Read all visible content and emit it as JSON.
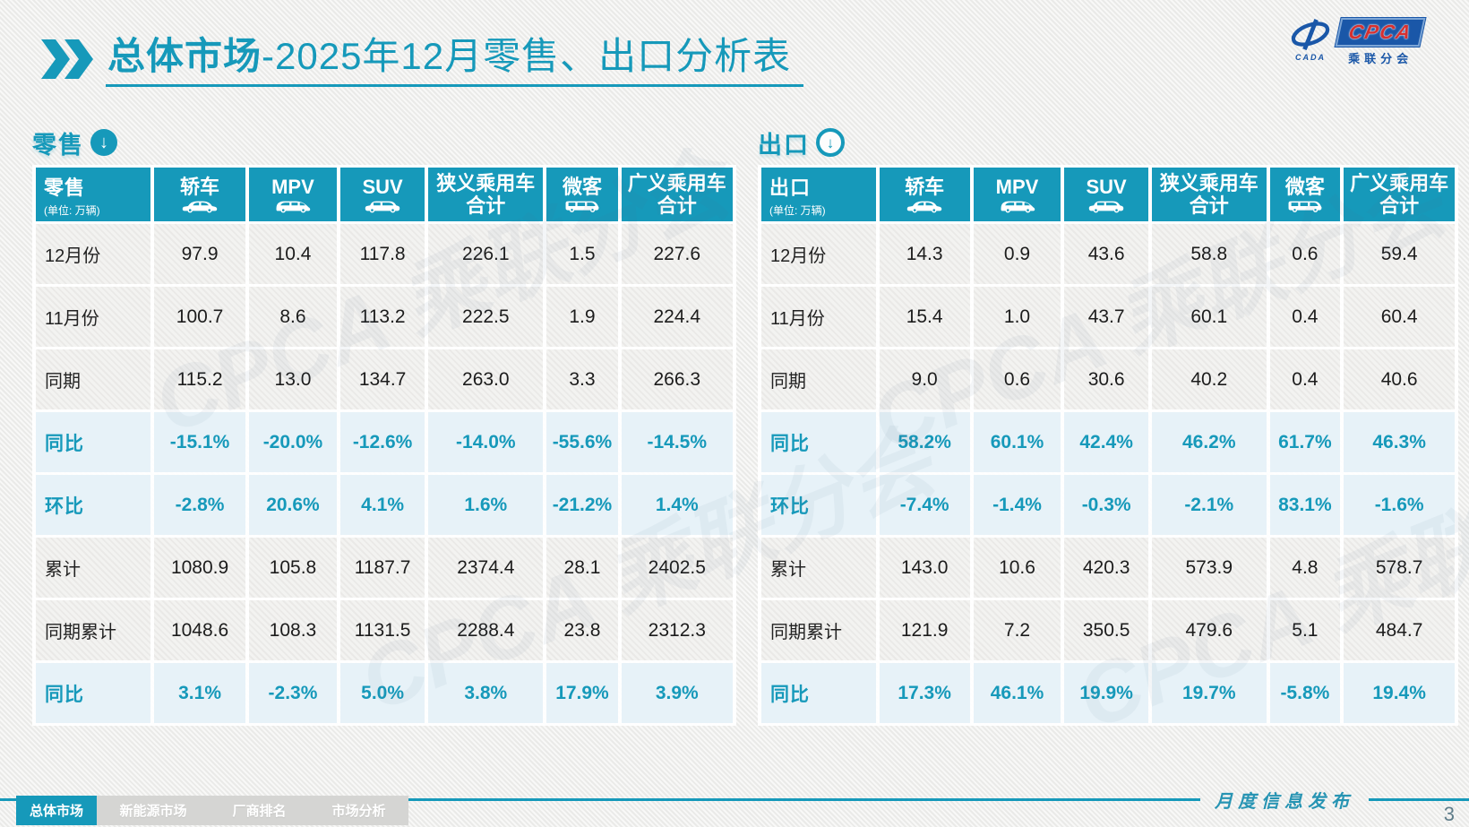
{
  "page": {
    "title_bold": "总体市场",
    "title_rest": "-2025年12月零售、出口分析表",
    "footer_text": "月度信息发布",
    "page_number": "3"
  },
  "logo": {
    "acronym": "CPCA",
    "subtitle": "乘联分会",
    "caption": "CADA"
  },
  "colors": {
    "teal": "#1699BA",
    "percent_row_bg": "#E7F2F8",
    "logo_blue": "#1A57A8",
    "logo_red": "#D63030"
  },
  "watermark": "CPCA 乘联分会",
  "nav": {
    "items": [
      {
        "label": "总体市场",
        "active": true
      },
      {
        "label": "新能源市场",
        "active": false
      },
      {
        "label": "厂商排名",
        "active": false
      },
      {
        "label": "市场分析",
        "active": false
      }
    ]
  },
  "chart_data": [
    {
      "type": "table",
      "title": "零售",
      "unit": "(单位: 万辆)",
      "arrow_icon": "solid-down-arrow-icon",
      "columns": [
        {
          "label": "轿车",
          "icon": "sedan-icon"
        },
        {
          "label": "MPV",
          "icon": "mpv-icon"
        },
        {
          "label": "SUV",
          "icon": "suv-icon"
        },
        {
          "label": "狭义乘用车",
          "sublabel": "合计"
        },
        {
          "label": "微客",
          "icon": "van-icon"
        },
        {
          "label": "广义乘用车",
          "sublabel": "合计"
        }
      ],
      "rows": [
        {
          "label": "12月份",
          "style": "value",
          "cells": [
            "97.9",
            "10.4",
            "117.8",
            "226.1",
            "1.5",
            "227.6"
          ]
        },
        {
          "label": "11月份",
          "style": "value",
          "cells": [
            "100.7",
            "8.6",
            "113.2",
            "222.5",
            "1.9",
            "224.4"
          ]
        },
        {
          "label": "同期",
          "style": "value",
          "cells": [
            "115.2",
            "13.0",
            "134.7",
            "263.0",
            "3.3",
            "266.3"
          ]
        },
        {
          "label": "同比",
          "style": "percent",
          "cells": [
            "-15.1%",
            "-20.0%",
            "-12.6%",
            "-14.0%",
            "-55.6%",
            "-14.5%"
          ]
        },
        {
          "label": "环比",
          "style": "percent",
          "cells": [
            "-2.8%",
            "20.6%",
            "4.1%",
            "1.6%",
            "-21.2%",
            "1.4%"
          ]
        },
        {
          "label": "累计",
          "style": "value",
          "cells": [
            "1080.9",
            "105.8",
            "1187.7",
            "2374.4",
            "28.1",
            "2402.5"
          ]
        },
        {
          "label": "同期累计",
          "style": "value",
          "cells": [
            "1048.6",
            "108.3",
            "1131.5",
            "2288.4",
            "23.8",
            "2312.3"
          ]
        },
        {
          "label": "同比",
          "style": "percent",
          "cells": [
            "3.1%",
            "-2.3%",
            "5.0%",
            "3.8%",
            "17.9%",
            "3.9%"
          ]
        }
      ]
    },
    {
      "type": "table",
      "title": "出口",
      "unit": "(单位: 万辆)",
      "arrow_icon": "outline-down-arrow-icon",
      "columns": [
        {
          "label": "轿车",
          "icon": "sedan-icon"
        },
        {
          "label": "MPV",
          "icon": "mpv-icon"
        },
        {
          "label": "SUV",
          "icon": "suv-icon"
        },
        {
          "label": "狭义乘用车",
          "sublabel": "合计"
        },
        {
          "label": "微客",
          "icon": "van-icon"
        },
        {
          "label": "广义乘用车",
          "sublabel": "合计"
        }
      ],
      "rows": [
        {
          "label": "12月份",
          "style": "value",
          "cells": [
            "14.3",
            "0.9",
            "43.6",
            "58.8",
            "0.6",
            "59.4"
          ]
        },
        {
          "label": "11月份",
          "style": "value",
          "cells": [
            "15.4",
            "1.0",
            "43.7",
            "60.1",
            "0.4",
            "60.4"
          ]
        },
        {
          "label": "同期",
          "style": "value",
          "cells": [
            "9.0",
            "0.6",
            "30.6",
            "40.2",
            "0.4",
            "40.6"
          ]
        },
        {
          "label": "同比",
          "style": "percent",
          "cells": [
            "58.2%",
            "60.1%",
            "42.4%",
            "46.2%",
            "61.7%",
            "46.3%"
          ]
        },
        {
          "label": "环比",
          "style": "percent",
          "cells": [
            "-7.4%",
            "-1.4%",
            "-0.3%",
            "-2.1%",
            "83.1%",
            "-1.6%"
          ]
        },
        {
          "label": "累计",
          "style": "value",
          "cells": [
            "143.0",
            "10.6",
            "420.3",
            "573.9",
            "4.8",
            "578.7"
          ]
        },
        {
          "label": "同期累计",
          "style": "value",
          "cells": [
            "121.9",
            "7.2",
            "350.5",
            "479.6",
            "5.1",
            "484.7"
          ]
        },
        {
          "label": "同比",
          "style": "percent",
          "cells": [
            "17.3%",
            "46.1%",
            "19.9%",
            "19.7%",
            "-5.8%",
            "19.4%"
          ]
        }
      ]
    }
  ]
}
